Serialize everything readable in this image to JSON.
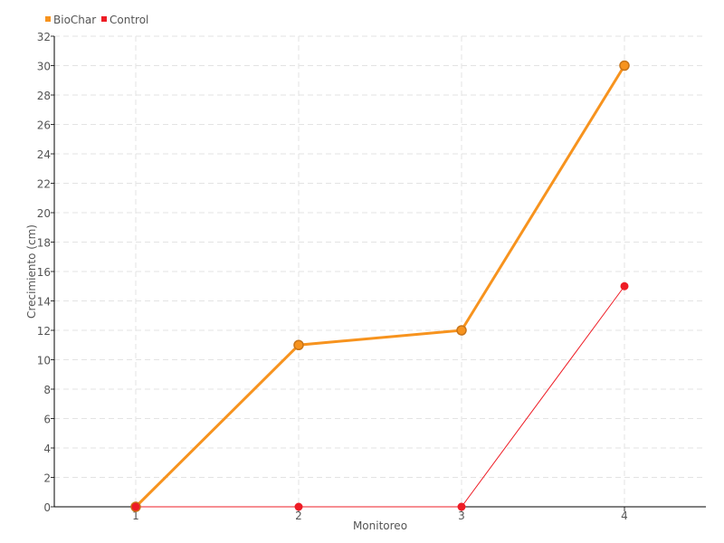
{
  "chart_data": {
    "type": "line",
    "categories": [
      "1",
      "2",
      "3",
      "4"
    ],
    "xlabel": "Monitoreo",
    "ylabel": "Crecimiento (cm)",
    "ylim": [
      0,
      32
    ],
    "yticks": [
      0,
      2,
      4,
      6,
      8,
      10,
      12,
      14,
      16,
      18,
      20,
      22,
      24,
      26,
      28,
      30,
      32
    ],
    "grid": true,
    "legend_position": "top-left",
    "series": [
      {
        "name": "BioChar",
        "values": [
          0,
          11,
          12,
          30
        ],
        "color": "#f7931e"
      },
      {
        "name": "Control",
        "values": [
          0,
          0,
          0,
          15
        ],
        "color": "#ee1c25"
      }
    ]
  }
}
